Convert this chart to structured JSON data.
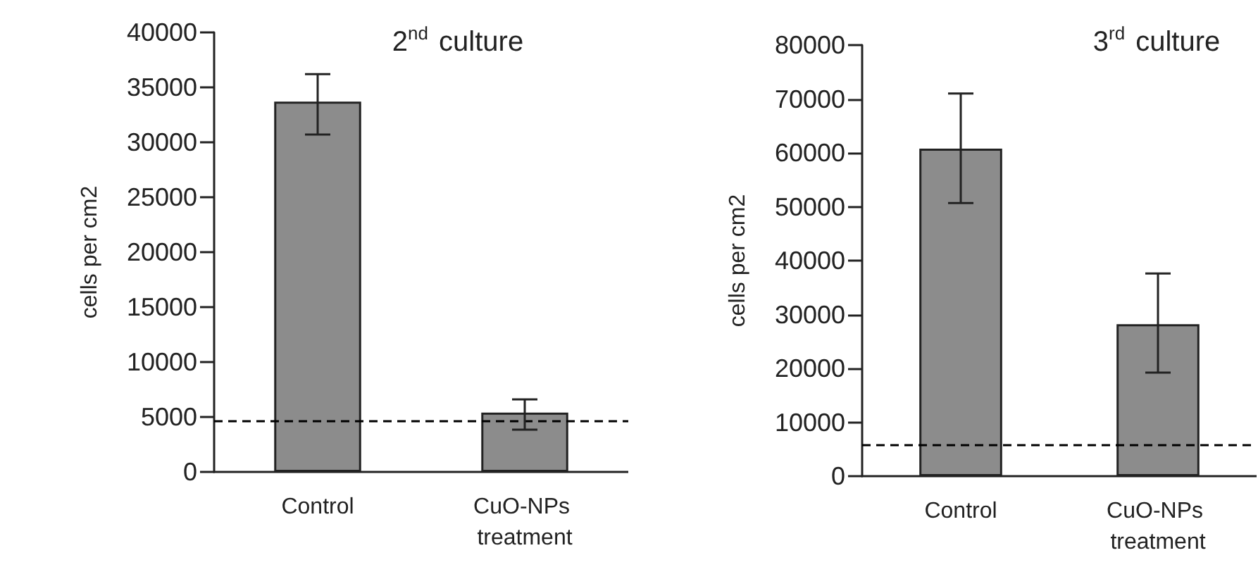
{
  "chart_data": [
    {
      "type": "bar",
      "title": "2$^{nd}$ culture",
      "ylabel": "cells per cm2",
      "categories": [
        "Control",
        "CuO-NPs treatment"
      ],
      "values": [
        33700,
        5400
      ],
      "color": "#8c8c8c",
      "errors": [
        [
          30700,
          36200
        ],
        [
          3850,
          6600
        ]
      ],
      "ylim": [
        0,
        40000
      ],
      "yticks": [
        0,
        5000,
        10000,
        15000,
        20000,
        25000,
        30000,
        35000,
        40000
      ],
      "grid": false,
      "ref_lines": [
        {
          "axis": "y",
          "value": 4600,
          "label": null,
          "color": "#000000",
          "line_style": "dashed"
        }
      ]
    },
    {
      "type": "bar",
      "title": "3$^{rd}$ culture",
      "ylabel": "cells per cm2",
      "categories": [
        "Control",
        "CuO-NPs treatment"
      ],
      "values": [
        60800,
        28200
      ],
      "color": "#8c8c8c",
      "errors": [
        [
          50700,
          71000
        ],
        [
          19200,
          37600
        ]
      ],
      "ylim": [
        0,
        80000
      ],
      "yticks": [
        0,
        10000,
        20000,
        30000,
        40000,
        50000,
        60000,
        70000,
        80000
      ],
      "grid": false,
      "ref_lines": [
        {
          "axis": "y",
          "value": 5700,
          "label": null,
          "color": "#000000",
          "line_style": "dashed"
        }
      ]
    }
  ]
}
